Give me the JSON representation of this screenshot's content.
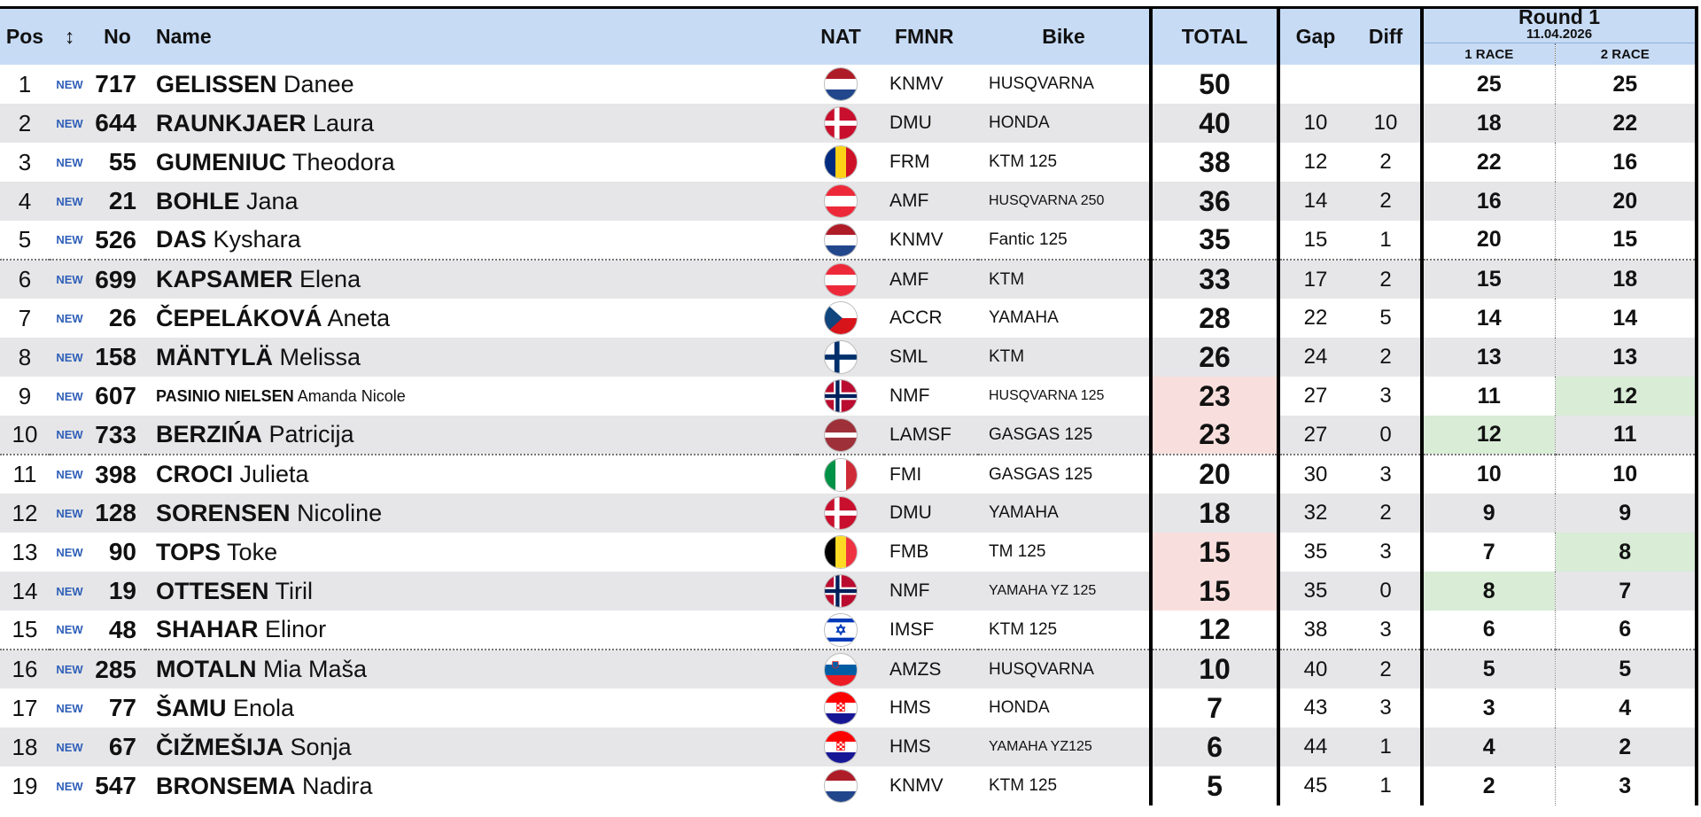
{
  "header": {
    "pos": "Pos",
    "move": "↕",
    "no": "No",
    "name": "Name",
    "nat": "NAT",
    "fmnr": "FMNR",
    "bike": "Bike",
    "total": "TOTAL",
    "gap": "Gap",
    "diff": "Diff",
    "round_title": "Round 1",
    "round_date": "11.04.2026",
    "race1": "1 RACE",
    "race2": "2 RACE"
  },
  "rows": [
    {
      "pos": "1",
      "badge": "NEW",
      "no": "717",
      "surname": "GELISSEN",
      "given": "Danee",
      "nat": "NED",
      "fmnr": "KNMV",
      "bike": "HUSQVARNA",
      "total": "50",
      "gap": "",
      "diff": "",
      "r1": "25",
      "r2": "25"
    },
    {
      "pos": "2",
      "badge": "NEW",
      "no": "644",
      "surname": "RAUNKJAER",
      "given": "Laura",
      "nat": "DEN",
      "fmnr": "DMU",
      "bike": "HONDA",
      "total": "40",
      "gap": "10",
      "diff": "10",
      "r1": "18",
      "r2": "22"
    },
    {
      "pos": "3",
      "badge": "NEW",
      "no": "55",
      "surname": "GUMENIUC",
      "given": "Theodora",
      "nat": "ROU",
      "fmnr": "FRM",
      "bike": "KTM 125",
      "total": "38",
      "gap": "12",
      "diff": "2",
      "r1": "22",
      "r2": "16"
    },
    {
      "pos": "4",
      "badge": "NEW",
      "no": "21",
      "surname": "BOHLE",
      "given": "Jana",
      "nat": "AUT",
      "fmnr": "AMF",
      "bike": "HUSQVARNA 250",
      "total": "36",
      "gap": "14",
      "diff": "2",
      "r1": "16",
      "r2": "20"
    },
    {
      "pos": "5",
      "badge": "NEW",
      "no": "526",
      "surname": "DAS",
      "given": "Kyshara",
      "nat": "NED",
      "fmnr": "KNMV",
      "bike": "Fantic 125",
      "total": "35",
      "gap": "15",
      "diff": "1",
      "r1": "20",
      "r2": "15"
    },
    {
      "pos": "6",
      "badge": "NEW",
      "no": "699",
      "surname": "KAPSAMER",
      "given": "Elena",
      "nat": "AUT",
      "fmnr": "AMF",
      "bike": "KTM",
      "total": "33",
      "gap": "17",
      "diff": "2",
      "r1": "15",
      "r2": "18"
    },
    {
      "pos": "7",
      "badge": "NEW",
      "no": "26",
      "surname": "ČEPELÁKOVÁ",
      "given": "Aneta",
      "nat": "CZE",
      "fmnr": "ACCR",
      "bike": "YAMAHA",
      "total": "28",
      "gap": "22",
      "diff": "5",
      "r1": "14",
      "r2": "14"
    },
    {
      "pos": "8",
      "badge": "NEW",
      "no": "158",
      "surname": "MÄNTYLÄ",
      "given": "Melissa",
      "nat": "FIN",
      "fmnr": "SML",
      "bike": "KTM",
      "total": "26",
      "gap": "24",
      "diff": "2",
      "r1": "13",
      "r2": "13"
    },
    {
      "pos": "9",
      "badge": "NEW",
      "no": "607",
      "surname": "PASINIO NIELSEN",
      "given": "Amanda Nicole",
      "nat": "NOR",
      "fmnr": "NMF",
      "bike": "HUSQVARNA 125",
      "total": "23",
      "gap": "27",
      "diff": "3",
      "r1": "11",
      "r2": "12"
    },
    {
      "pos": "10",
      "badge": "NEW",
      "no": "733",
      "surname": "BERZIŃA",
      "given": "Patricija",
      "nat": "LAT",
      "fmnr": "LAMSF",
      "bike": "GASGAS 125",
      "total": "23",
      "gap": "27",
      "diff": "0",
      "r1": "12",
      "r2": "11"
    },
    {
      "pos": "11",
      "badge": "NEW",
      "no": "398",
      "surname": "CROCI",
      "given": "Julieta",
      "nat": "ITA",
      "fmnr": "FMI",
      "bike": "GASGAS 125",
      "total": "20",
      "gap": "30",
      "diff": "3",
      "r1": "10",
      "r2": "10"
    },
    {
      "pos": "12",
      "badge": "NEW",
      "no": "128",
      "surname": "SORENSEN",
      "given": "Nicoline",
      "nat": "DEN",
      "fmnr": "DMU",
      "bike": "YAMAHA",
      "total": "18",
      "gap": "32",
      "diff": "2",
      "r1": "9",
      "r2": "9"
    },
    {
      "pos": "13",
      "badge": "NEW",
      "no": "90",
      "surname": "TOPS",
      "given": "Toke",
      "nat": "BEL",
      "fmnr": "FMB",
      "bike": "TM 125",
      "total": "15",
      "gap": "35",
      "diff": "3",
      "r1": "7",
      "r2": "8"
    },
    {
      "pos": "14",
      "badge": "NEW",
      "no": "19",
      "surname": "OTTESEN",
      "given": "Tiril",
      "nat": "NOR",
      "fmnr": "NMF",
      "bike": "YAMAHA YZ 125",
      "total": "15",
      "gap": "35",
      "diff": "0",
      "r1": "8",
      "r2": "7"
    },
    {
      "pos": "15",
      "badge": "NEW",
      "no": "48",
      "surname": "SHAHAR",
      "given": "Elinor",
      "nat": "ISR",
      "fmnr": "IMSF",
      "bike": "KTM 125",
      "total": "12",
      "gap": "38",
      "diff": "3",
      "r1": "6",
      "r2": "6"
    },
    {
      "pos": "16",
      "badge": "NEW",
      "no": "285",
      "surname": "MOTALN",
      "given": "Mia Maša",
      "nat": "SLO",
      "fmnr": "AMZS",
      "bike": "HUSQVARNA",
      "total": "10",
      "gap": "40",
      "diff": "2",
      "r1": "5",
      "r2": "5"
    },
    {
      "pos": "17",
      "badge": "NEW",
      "no": "77",
      "surname": "ŠAMU",
      "given": "Enola",
      "nat": "CRO",
      "fmnr": "HMS",
      "bike": "HONDA",
      "total": "7",
      "gap": "43",
      "diff": "3",
      "r1": "3",
      "r2": "4"
    },
    {
      "pos": "18",
      "badge": "NEW",
      "no": "67",
      "surname": "ČIŽMEŠIJA",
      "given": "Sonja",
      "nat": "CRO",
      "fmnr": "HMS",
      "bike": "YAMAHA YZ125",
      "total": "6",
      "gap": "44",
      "diff": "1",
      "r1": "4",
      "r2": "2"
    },
    {
      "pos": "19",
      "badge": "NEW",
      "no": "547",
      "surname": "BRONSEMA",
      "given": "Nadira",
      "nat": "NED",
      "fmnr": "KNMV",
      "bike": "KTM 125",
      "total": "5",
      "gap": "45",
      "diff": "1",
      "r1": "2",
      "r2": "3"
    }
  ],
  "flag_icons": {
    "NED": "netherlands-flag-icon",
    "DEN": "denmark-flag-icon",
    "ROU": "romania-flag-icon",
    "AUT": "austria-flag-icon",
    "CZE": "czech-flag-icon",
    "FIN": "finland-flag-icon",
    "NOR": "norway-flag-icon",
    "LAT": "latvia-flag-icon",
    "ITA": "italy-flag-icon",
    "BEL": "belgium-flag-icon",
    "ISR": "israel-flag-icon",
    "SLO": "slovenia-flag-icon",
    "CRO": "croatia-flag-icon"
  },
  "colors": {
    "header_bg": "#c7dbf5",
    "row_alt_bg": "#e6e6e8",
    "tie_red": "#f8dfdd",
    "tie_green": "#d8ecd6",
    "new_badge": "#2f5fb8"
  }
}
